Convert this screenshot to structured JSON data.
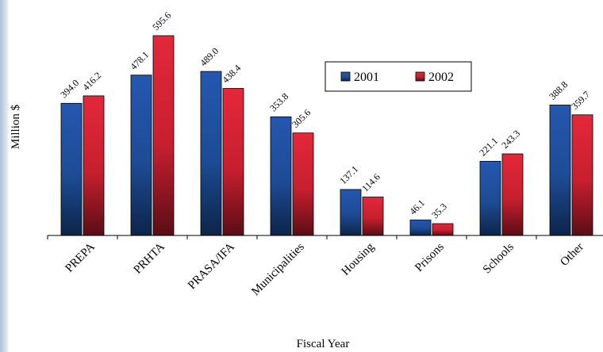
{
  "chart_data": {
    "type": "bar",
    "title": "",
    "xlabel": "Fiscal Year",
    "ylabel": "Million $",
    "ylim": [
      0,
      620
    ],
    "grid": false,
    "legend_position": "top-right",
    "categories": [
      "PREPA",
      "PRHTA",
      "PRASA/IFA",
      "Municipalities",
      "Housing",
      "Prisons",
      "Schools",
      "Other"
    ],
    "series": [
      {
        "name": "2001",
        "color": "#1f4e9c",
        "values": [
          394.0,
          478.1,
          489.0,
          353.8,
          137.1,
          46.1,
          221.1,
          388.8
        ],
        "labels": [
          "394.0",
          "478.1",
          "489.0",
          "353.8",
          "137.1",
          "46.1",
          "221.1",
          "388.8"
        ]
      },
      {
        "name": "2002",
        "color": "#d6242f",
        "values": [
          416.2,
          595.6,
          438.4,
          305.6,
          114.6,
          35.3,
          243.3,
          359.7
        ],
        "labels": [
          "416.2",
          "595.6",
          "438.4",
          "305.6",
          "114.6",
          "35.3",
          "243.3",
          "359.7"
        ]
      }
    ]
  }
}
